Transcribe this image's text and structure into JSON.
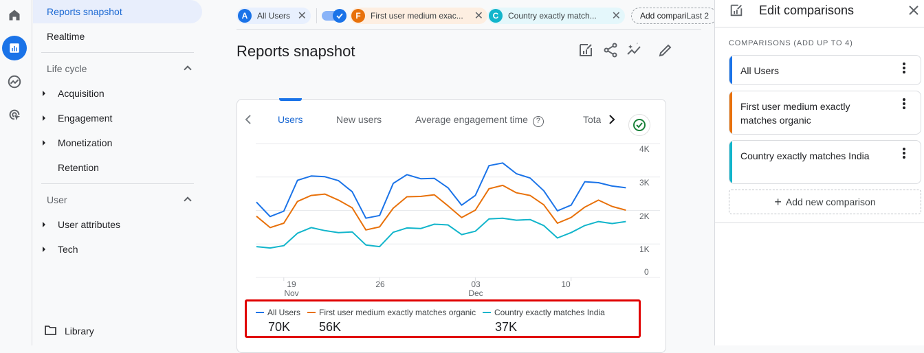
{
  "rail": {
    "items": [
      {
        "name": "home",
        "icon": "home-icon"
      },
      {
        "name": "reports",
        "icon": "bar-chart-icon",
        "active": true
      },
      {
        "name": "explore",
        "icon": "explore-icon"
      },
      {
        "name": "advertising",
        "icon": "advertising-icon"
      }
    ]
  },
  "nav": {
    "top_items": [
      {
        "label": "Reports snapshot",
        "selected": true
      },
      {
        "label": "Realtime"
      }
    ],
    "sections": [
      {
        "label": "Life cycle",
        "items": [
          {
            "label": "Acquisition",
            "expandable": true
          },
          {
            "label": "Engagement",
            "expandable": true
          },
          {
            "label": "Monetization",
            "expandable": true
          },
          {
            "label": "Retention",
            "expandable": false
          }
        ]
      },
      {
        "label": "User",
        "items": [
          {
            "label": "User attributes",
            "expandable": true
          },
          {
            "label": "Tech",
            "expandable": true
          }
        ]
      }
    ],
    "library": "Library"
  },
  "chips": [
    {
      "letter": "A",
      "label": "All Users",
      "color": "#1a73e8",
      "bg": "#e8f0fe"
    },
    {
      "letter": "F",
      "label": "First user medium exac...",
      "color": "#e8710a",
      "bg": "#fdeee1"
    },
    {
      "letter": "C",
      "label": "Country exactly match...",
      "color": "#12b5cb",
      "bg": "#e4f7fb"
    }
  ],
  "add_comparison_chip": "Add compari",
  "date_range_partial": "Last 2",
  "page": {
    "title": "Reports snapshot"
  },
  "toolbar": {
    "icons": [
      "customize-report-icon",
      "share-icon",
      "insights-icon",
      "edit-icon"
    ]
  },
  "card": {
    "tabs": [
      {
        "label": "Users",
        "selected": true
      },
      {
        "label": "New users"
      },
      {
        "label": "Average engagement time"
      },
      {
        "label": "Tota"
      }
    ],
    "help_icon": "?",
    "legend": [
      {
        "label": "All Users",
        "value": "70K",
        "color": "#1a73e8"
      },
      {
        "label": "First user medium exactly matches organic",
        "value": "56K",
        "color": "#e8710a"
      },
      {
        "label": "Country exactly matches India",
        "value": "37K",
        "color": "#12b5cb"
      }
    ]
  },
  "chart_data": {
    "type": "line",
    "title": "Users",
    "xlabel": "",
    "ylabel": "",
    "ylim": [
      0,
      4000
    ],
    "yticks": [
      "0",
      "1K",
      "2K",
      "3K",
      "4K"
    ],
    "xticks": [
      {
        "label": "19",
        "sub": "Nov",
        "index": 2
      },
      {
        "label": "26",
        "sub": "",
        "index": 9
      },
      {
        "label": "03",
        "sub": "Dec",
        "index": 16
      },
      {
        "label": "10",
        "sub": "",
        "index": 23
      }
    ],
    "x": [
      "Nov 17",
      "Nov 18",
      "Nov 19",
      "Nov 20",
      "Nov 21",
      "Nov 22",
      "Nov 23",
      "Nov 24",
      "Nov 25",
      "Nov 26",
      "Nov 27",
      "Nov 28",
      "Nov 29",
      "Nov 30",
      "Dec 01",
      "Dec 02",
      "Dec 03",
      "Dec 04",
      "Dec 05",
      "Dec 06",
      "Dec 07",
      "Dec 08",
      "Dec 09",
      "Dec 10",
      "Dec 11",
      "Dec 12",
      "Dec 13",
      "Dec 14"
    ],
    "grid": true,
    "legend_position": "bottom",
    "series": [
      {
        "name": "All Users",
        "color": "#1a73e8",
        "total": "70K",
        "values": [
          2250,
          1820,
          1980,
          2900,
          3030,
          3010,
          2890,
          2560,
          1770,
          1850,
          2810,
          3070,
          2950,
          2960,
          2680,
          2160,
          2450,
          3340,
          3420,
          3100,
          2970,
          2590,
          1990,
          2160,
          2860,
          2830,
          2730,
          2680
        ]
      },
      {
        "name": "First user medium exactly matches organic",
        "color": "#e8710a",
        "total": "56K",
        "values": [
          1830,
          1490,
          1620,
          2270,
          2450,
          2490,
          2310,
          2080,
          1420,
          1510,
          2070,
          2410,
          2420,
          2470,
          2140,
          1790,
          2010,
          2650,
          2750,
          2530,
          2450,
          2170,
          1620,
          1790,
          2100,
          2310,
          2120,
          2010
        ]
      },
      {
        "name": "Country exactly matches India",
        "color": "#12b5cb",
        "total": "37K",
        "values": [
          920,
          880,
          950,
          1320,
          1490,
          1400,
          1340,
          1360,
          970,
          920,
          1350,
          1480,
          1460,
          1590,
          1570,
          1280,
          1380,
          1750,
          1770,
          1710,
          1730,
          1550,
          1180,
          1340,
          1550,
          1670,
          1610,
          1670
        ]
      }
    ]
  },
  "panel": {
    "title": "Edit comparisons",
    "subtitle": "COMPARISONS (ADD UP TO 4)",
    "comparisons": [
      {
        "label": "All Users",
        "color": "#1a73e8"
      },
      {
        "label": "First user medium exactly matches organic",
        "color": "#e8710a"
      },
      {
        "label": "Country exactly matches India",
        "color": "#12b5cb"
      }
    ],
    "add_new": "Add new comparison"
  }
}
